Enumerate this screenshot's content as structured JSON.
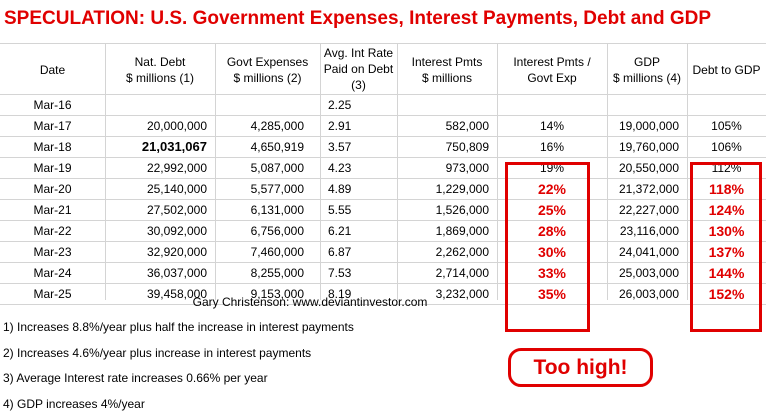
{
  "title": "SPECULATION:  U.S. Government Expenses, Interest Payments, Debt and GDP",
  "headers": {
    "date": [
      "Date"
    ],
    "debt": [
      "Nat. Debt",
      "$ millions (1)"
    ],
    "exp": [
      "Govt Expenses",
      "$ millions (2)"
    ],
    "rate": [
      "Avg. Int Rate",
      "Paid on Debt",
      "(3)"
    ],
    "int": [
      "Interest Pmts",
      "$ millions"
    ],
    "ratio": [
      "Interest Pmts /",
      "Govt Exp"
    ],
    "gdp": [
      "GDP",
      "$ millions (4)"
    ],
    "dtg": [
      "Debt to GDP"
    ]
  },
  "rows": [
    {
      "date": "Mar-16",
      "debt": "",
      "exp": "",
      "rate": "2.25",
      "int": "",
      "ratio": "",
      "gdp": "",
      "dtg": ""
    },
    {
      "date": "Mar-17",
      "debt": "20,000,000",
      "exp": "4,285,000",
      "rate": "2.91",
      "int": "582,000",
      "ratio": "14%",
      "gdp": "19,000,000",
      "dtg": "105%"
    },
    {
      "date": "Mar-18",
      "debt": "21,031,067",
      "exp": "4,650,919",
      "rate": "3.57",
      "int": "750,809",
      "ratio": "16%",
      "gdp": "19,760,000",
      "dtg": "106%"
    },
    {
      "date": "Mar-19",
      "debt": "22,992,000",
      "exp": "5,087,000",
      "rate": "4.23",
      "int": "973,000",
      "ratio": "19%",
      "gdp": "20,550,000",
      "dtg": "112%"
    },
    {
      "date": "Mar-20",
      "debt": "25,140,000",
      "exp": "5,577,000",
      "rate": "4.89",
      "int": "1,229,000",
      "ratio": "22%",
      "gdp": "21,372,000",
      "dtg": "118%"
    },
    {
      "date": "Mar-21",
      "debt": "27,502,000",
      "exp": "6,131,000",
      "rate": "5.55",
      "int": "1,526,000",
      "ratio": "25%",
      "gdp": "22,227,000",
      "dtg": "124%"
    },
    {
      "date": "Mar-22",
      "debt": "30,092,000",
      "exp": "6,756,000",
      "rate": "6.21",
      "int": "1,869,000",
      "ratio": "28%",
      "gdp": "23,116,000",
      "dtg": "130%"
    },
    {
      "date": "Mar-23",
      "debt": "32,920,000",
      "exp": "7,460,000",
      "rate": "6.87",
      "int": "2,262,000",
      "ratio": "30%",
      "gdp": "24,041,000",
      "dtg": "137%"
    },
    {
      "date": "Mar-24",
      "debt": "36,037,000",
      "exp": "8,255,000",
      "rate": "7.53",
      "int": "2,714,000",
      "ratio": "33%",
      "gdp": "25,003,000",
      "dtg": "144%"
    },
    {
      "date": "Mar-25",
      "debt": "39,458,000",
      "exp": "9,153,000",
      "rate": "8.19",
      "int": "3,232,000",
      "ratio": "35%",
      "gdp": "26,003,000",
      "dtg": "152%"
    }
  ],
  "credit": "Gary Christenson:  www.deviantinvestor.com",
  "notes": [
    "1) Increases 8.8%/year plus half the increase in interest payments",
    "2) Increases 4.6%/year plus increase in interest payments",
    "3) Average Interest rate increases 0.66% per year",
    "4) GDP increases 4%/year"
  ],
  "callout": "Too high!",
  "colors": {
    "accent": "#e00000",
    "grid": "#d4d4d4"
  }
}
